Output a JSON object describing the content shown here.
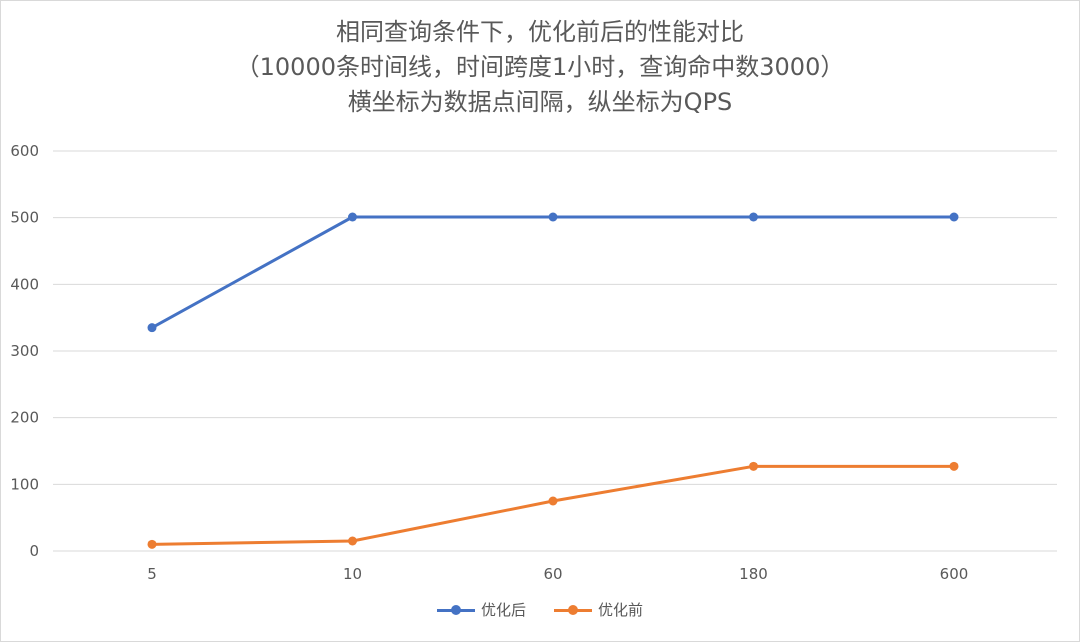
{
  "colors": {
    "after": "#4472C4",
    "before": "#ED7D31",
    "grid": "#d9d9d9",
    "text": "#595959"
  },
  "chart_data": {
    "type": "line",
    "title_lines": [
      "相同查询条件下，优化前后的性能对比",
      "（10000条时间线，时间跨度1小时，查询命中数3000）",
      "横坐标为数据点间隔，纵坐标为QPS"
    ],
    "categories": [
      "5",
      "10",
      "60",
      "180",
      "600"
    ],
    "series": [
      {
        "name": "优化后",
        "values": [
          335,
          501,
          501,
          501,
          501
        ]
      },
      {
        "name": "优化前",
        "values": [
          10,
          15,
          75,
          127,
          127
        ]
      }
    ],
    "ylim": [
      0,
      600
    ],
    "yticks": [
      0,
      100,
      200,
      300,
      400,
      500,
      600
    ],
    "grid": true,
    "legend_position": "bottom"
  }
}
